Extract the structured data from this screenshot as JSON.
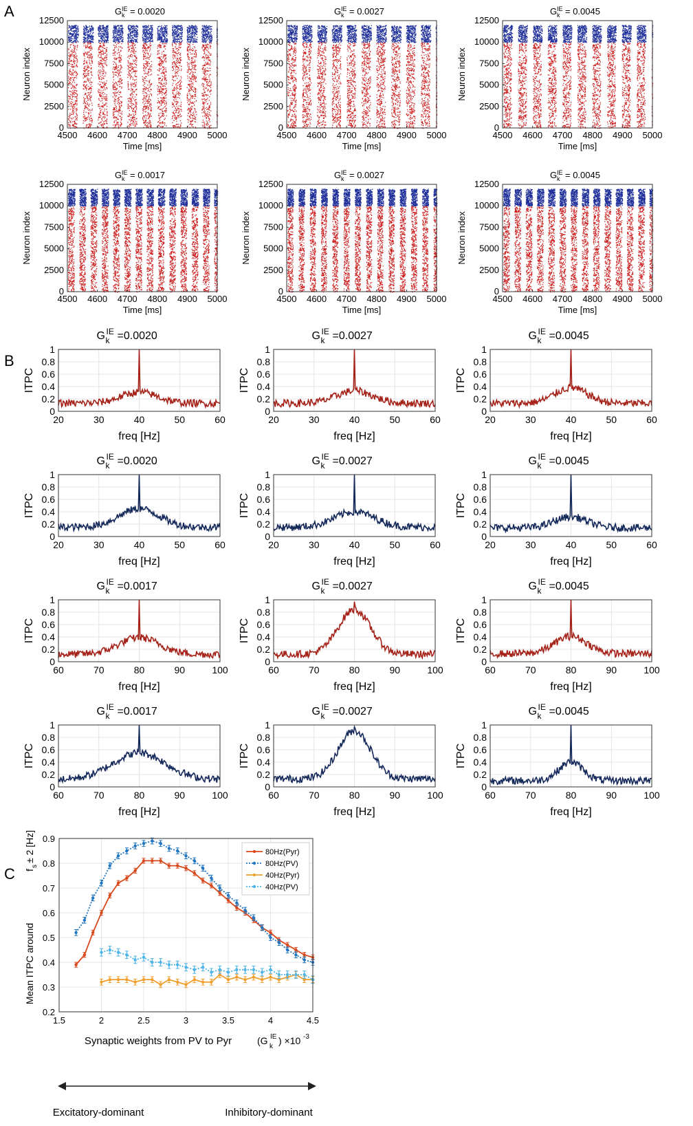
{
  "figure": {
    "panel_labels": [
      "A",
      "B",
      "C"
    ],
    "colors": {
      "pyr": "#cc1f1f",
      "pv": "#1f2f9a",
      "itpc_pyr": "#a52219",
      "itpc_pv": "#14285a",
      "c_80pyr": "#d9481c",
      "c_80pv": "#2076c0",
      "c_40pyr": "#f0a030",
      "c_40pv": "#4cb4e6"
    }
  },
  "chart_data": [
    {
      "panel": "A",
      "type": "scatter",
      "description_type": "raster",
      "xlabel": "Time [ms]",
      "ylabel": "Neuron index",
      "xlim": [
        4500,
        5000
      ],
      "ylim": [
        0,
        12500
      ],
      "xticks": [
        4500,
        4600,
        4700,
        4800,
        4900,
        5000
      ],
      "yticks": [
        0,
        2500,
        5000,
        7500,
        10000,
        12500
      ],
      "series": [
        {
          "name": "Pyr",
          "index_range": [
            0,
            10000
          ]
        },
        {
          "name": "PV",
          "index_range": [
            10000,
            12000
          ]
        }
      ],
      "plots": [
        {
          "title_prefix": "G",
          "title_sub": "k",
          "title_sup": "IE",
          "title_value": " = 0.0020",
          "burst_period_ms": 49.5,
          "burst_width_ms": 34
        },
        {
          "title_prefix": "G",
          "title_sub": "k",
          "title_sup": "IE",
          "title_value": " = 0.0027",
          "burst_period_ms": 49.5,
          "burst_width_ms": 32
        },
        {
          "title_prefix": "G",
          "title_sub": "k",
          "title_sup": "IE",
          "title_value": " = 0.0045",
          "burst_period_ms": 49.5,
          "burst_width_ms": 30
        },
        {
          "title_prefix": "G",
          "title_sub": "k",
          "title_sup": "IE",
          "title_value": " = 0.0017",
          "burst_period_ms": 37.5,
          "burst_width_ms": 22
        },
        {
          "title_prefix": "G",
          "title_sub": "k",
          "title_sup": "IE",
          "title_value": " = 0.0027",
          "burst_period_ms": 37.5,
          "burst_width_ms": 20
        },
        {
          "title_prefix": "G",
          "title_sub": "k",
          "title_sup": "IE",
          "title_value": " = 0.0045",
          "burst_period_ms": 37.5,
          "burst_width_ms": 22
        }
      ]
    },
    {
      "panel": "B",
      "type": "line",
      "xlabel": "freq [Hz]",
      "ylabel": "ITPC",
      "ylim": [
        0,
        1
      ],
      "yticks": [
        0,
        0.2,
        0.4,
        0.6,
        0.8,
        1
      ],
      "plots": [
        {
          "row": 0,
          "title_prefix": "G",
          "title_sub": "k",
          "title_sup": "IE",
          "title_value": "=0.0020",
          "series": "Pyr",
          "xlim": [
            20,
            60
          ],
          "xticks": [
            20,
            30,
            40,
            50,
            60
          ],
          "peak_hz": 40,
          "peak": 1.0,
          "baseline": 0.13,
          "bump_height": 0.18,
          "bump_width_hz": 4.5
        },
        {
          "row": 0,
          "title_prefix": "G",
          "title_sub": "k",
          "title_sup": "IE",
          "title_value": "=0.0027",
          "series": "Pyr",
          "xlim": [
            20,
            60
          ],
          "xticks": [
            20,
            30,
            40,
            50,
            60
          ],
          "peak_hz": 40,
          "peak": 1.0,
          "baseline": 0.13,
          "bump_height": 0.2,
          "bump_width_hz": 4.5
        },
        {
          "row": 0,
          "title_prefix": "G",
          "title_sub": "k",
          "title_sup": "IE",
          "title_value": "=0.0045",
          "series": "Pyr",
          "xlim": [
            20,
            60
          ],
          "xticks": [
            20,
            30,
            40,
            50,
            60
          ],
          "peak_hz": 40,
          "peak": 1.0,
          "baseline": 0.13,
          "bump_height": 0.25,
          "bump_width_hz": 4.0
        },
        {
          "row": 1,
          "title_prefix": "G",
          "title_sub": "k",
          "title_sup": "IE",
          "title_value": "=0.0020",
          "series": "PV",
          "xlim": [
            20,
            60
          ],
          "xticks": [
            20,
            30,
            40,
            50,
            60
          ],
          "peak_hz": 40,
          "peak": 1.0,
          "baseline": 0.15,
          "bump_height": 0.3,
          "bump_width_hz": 5.0
        },
        {
          "row": 1,
          "title_prefix": "G",
          "title_sub": "k",
          "title_sup": "IE",
          "title_value": "=0.0027",
          "series": "PV",
          "xlim": [
            20,
            60
          ],
          "xticks": [
            20,
            30,
            40,
            50,
            60
          ],
          "peak_hz": 40,
          "peak": 1.0,
          "baseline": 0.15,
          "bump_height": 0.25,
          "bump_width_hz": 5.0
        },
        {
          "row": 1,
          "title_prefix": "G",
          "title_sub": "k",
          "title_sup": "IE",
          "title_value": "=0.0045",
          "series": "PV",
          "xlim": [
            20,
            60
          ],
          "xticks": [
            20,
            30,
            40,
            50,
            60
          ],
          "peak_hz": 40,
          "peak": 1.0,
          "baseline": 0.14,
          "bump_height": 0.18,
          "bump_width_hz": 4.0
        },
        {
          "row": 2,
          "title_prefix": "G",
          "title_sub": "k",
          "title_sup": "IE",
          "title_value": "=0.0017",
          "series": "Pyr",
          "xlim": [
            60,
            100
          ],
          "xticks": [
            60,
            70,
            80,
            90,
            100
          ],
          "peak_hz": 80,
          "peak": 1.0,
          "baseline": 0.12,
          "bump_height": 0.27,
          "bump_width_hz": 5.0
        },
        {
          "row": 2,
          "title_prefix": "G",
          "title_sub": "k",
          "title_sup": "IE",
          "title_value": "=0.0027",
          "series": "Pyr",
          "xlim": [
            60,
            100
          ],
          "xticks": [
            60,
            70,
            80,
            90,
            100
          ],
          "peak_hz": 80,
          "peak": 0.97,
          "baseline": 0.12,
          "bump_height": 0.72,
          "bump_width_hz": 4.0
        },
        {
          "row": 2,
          "title_prefix": "G",
          "title_sub": "k",
          "title_sup": "IE",
          "title_value": "=0.0045",
          "series": "Pyr",
          "xlim": [
            60,
            100
          ],
          "xticks": [
            60,
            70,
            80,
            90,
            100
          ],
          "peak_hz": 80,
          "peak": 1.0,
          "baseline": 0.13,
          "bump_height": 0.28,
          "bump_width_hz": 4.0
        },
        {
          "row": 3,
          "title_prefix": "G",
          "title_sub": "k",
          "title_sup": "IE",
          "title_value": "=0.0017",
          "series": "PV",
          "xlim": [
            60,
            100
          ],
          "xticks": [
            60,
            70,
            80,
            90,
            100
          ],
          "peak_hz": 80,
          "peak": 1.0,
          "baseline": 0.12,
          "bump_height": 0.43,
          "bump_width_hz": 6.5
        },
        {
          "row": 3,
          "title_prefix": "G",
          "title_sub": "k",
          "title_sup": "IE",
          "title_value": "=0.0027",
          "series": "PV",
          "xlim": [
            60,
            100
          ],
          "xticks": [
            60,
            70,
            80,
            90,
            100
          ],
          "peak_hz": 80,
          "peak": 0.97,
          "baseline": 0.13,
          "bump_height": 0.78,
          "bump_width_hz": 4.0
        },
        {
          "row": 3,
          "title_prefix": "G",
          "title_sub": "k",
          "title_sup": "IE",
          "title_value": "=0.0045",
          "series": "PV",
          "xlim": [
            60,
            100
          ],
          "xticks": [
            60,
            70,
            80,
            90,
            100
          ],
          "peak_hz": 80,
          "peak": 1.0,
          "baseline": 0.1,
          "bump_height": 0.3,
          "bump_width_hz": 3.0
        }
      ]
    },
    {
      "panel": "C",
      "type": "line",
      "ylabel_line1": "Mean ITPC around",
      "ylabel_line2_prefix": "f",
      "ylabel_line2_sub": "s",
      "ylabel_line2_suffix": " ± 2 [Hz]",
      "xlabel": "Synaptic weights from PV to Pyr",
      "x_unit_prefix": "(G",
      "x_unit_sub": "k",
      "x_unit_sup": "IE",
      "x_unit_suffix": ") ×10",
      "x_unit_exp": "-3",
      "xlim": [
        1.5,
        4.5
      ],
      "ylim": [
        0.2,
        0.9
      ],
      "xticks": [
        1.5,
        2,
        2.5,
        3,
        3.5,
        4,
        4.5
      ],
      "xtick_labels": [
        "1.5",
        "2",
        "2.5",
        "3",
        "3.5",
        "4",
        "4.5"
      ],
      "yticks": [
        0.2,
        0.3,
        0.4,
        0.5,
        0.6,
        0.7,
        0.8,
        0.9
      ],
      "ytick_labels": [
        "0.2",
        "0.3",
        "0.4",
        "0.5",
        "0.6",
        "0.7",
        "0.8",
        "0.9"
      ],
      "left_arrow_label": "Excitatory-dominant",
      "right_arrow_label": "Inhibitory-dominant",
      "series": [
        {
          "name": "80Hz(Pyr)",
          "style": "solid",
          "color": "#d9481c",
          "x": [
            1.7,
            1.8,
            1.9,
            2.0,
            2.1,
            2.2,
            2.3,
            2.4,
            2.5,
            2.6,
            2.7,
            2.8,
            2.9,
            3.0,
            3.1,
            3.2,
            3.3,
            3.4,
            3.5,
            3.6,
            3.7,
            3.8,
            3.9,
            4.0,
            4.1,
            4.2,
            4.3,
            4.4,
            4.5
          ],
          "values": [
            0.39,
            0.43,
            0.52,
            0.6,
            0.67,
            0.72,
            0.74,
            0.77,
            0.81,
            0.81,
            0.81,
            0.79,
            0.79,
            0.78,
            0.76,
            0.73,
            0.71,
            0.68,
            0.65,
            0.62,
            0.6,
            0.57,
            0.54,
            0.52,
            0.49,
            0.47,
            0.45,
            0.43,
            0.42
          ],
          "err": 0.01
        },
        {
          "name": "80Hz(PV)",
          "style": "dotted",
          "color": "#2076c0",
          "x": [
            1.7,
            1.8,
            1.9,
            2.0,
            2.1,
            2.2,
            2.3,
            2.4,
            2.5,
            2.6,
            2.7,
            2.8,
            2.9,
            3.0,
            3.1,
            3.2,
            3.3,
            3.4,
            3.5,
            3.6,
            3.7,
            3.8,
            3.9,
            4.0,
            4.1,
            4.2,
            4.3,
            4.4,
            4.5
          ],
          "values": [
            0.52,
            0.57,
            0.66,
            0.72,
            0.79,
            0.83,
            0.85,
            0.87,
            0.88,
            0.89,
            0.88,
            0.86,
            0.85,
            0.83,
            0.81,
            0.78,
            0.74,
            0.7,
            0.67,
            0.64,
            0.61,
            0.58,
            0.54,
            0.5,
            0.48,
            0.45,
            0.43,
            0.41,
            0.4
          ],
          "err": 0.012
        },
        {
          "name": "40Hz(Pyr)",
          "style": "solid",
          "color": "#f0a030",
          "x": [
            2.0,
            2.1,
            2.2,
            2.3,
            2.4,
            2.5,
            2.6,
            2.7,
            2.8,
            2.9,
            3.0,
            3.1,
            3.2,
            3.3,
            3.4,
            3.5,
            3.6,
            3.7,
            3.8,
            3.9,
            4.0,
            4.1,
            4.2,
            4.3,
            4.4,
            4.5
          ],
          "values": [
            0.32,
            0.33,
            0.33,
            0.33,
            0.32,
            0.33,
            0.33,
            0.31,
            0.33,
            0.32,
            0.31,
            0.33,
            0.32,
            0.32,
            0.35,
            0.33,
            0.34,
            0.33,
            0.34,
            0.33,
            0.34,
            0.33,
            0.34,
            0.35,
            0.33,
            0.33
          ],
          "err": 0.012
        },
        {
          "name": "40Hz(PV)",
          "style": "dotted",
          "color": "#4cb4e6",
          "x": [
            2.0,
            2.1,
            2.2,
            2.3,
            2.4,
            2.5,
            2.6,
            2.7,
            2.8,
            2.9,
            3.0,
            3.1,
            3.2,
            3.3,
            3.4,
            3.5,
            3.6,
            3.7,
            3.8,
            3.9,
            4.0,
            4.1,
            4.2,
            4.3,
            4.4,
            4.5
          ],
          "values": [
            0.44,
            0.45,
            0.44,
            0.43,
            0.41,
            0.42,
            0.4,
            0.4,
            0.39,
            0.39,
            0.38,
            0.37,
            0.38,
            0.36,
            0.37,
            0.36,
            0.37,
            0.37,
            0.37,
            0.36,
            0.37,
            0.35,
            0.35,
            0.35,
            0.35,
            0.33
          ],
          "err": 0.015
        }
      ]
    }
  ]
}
